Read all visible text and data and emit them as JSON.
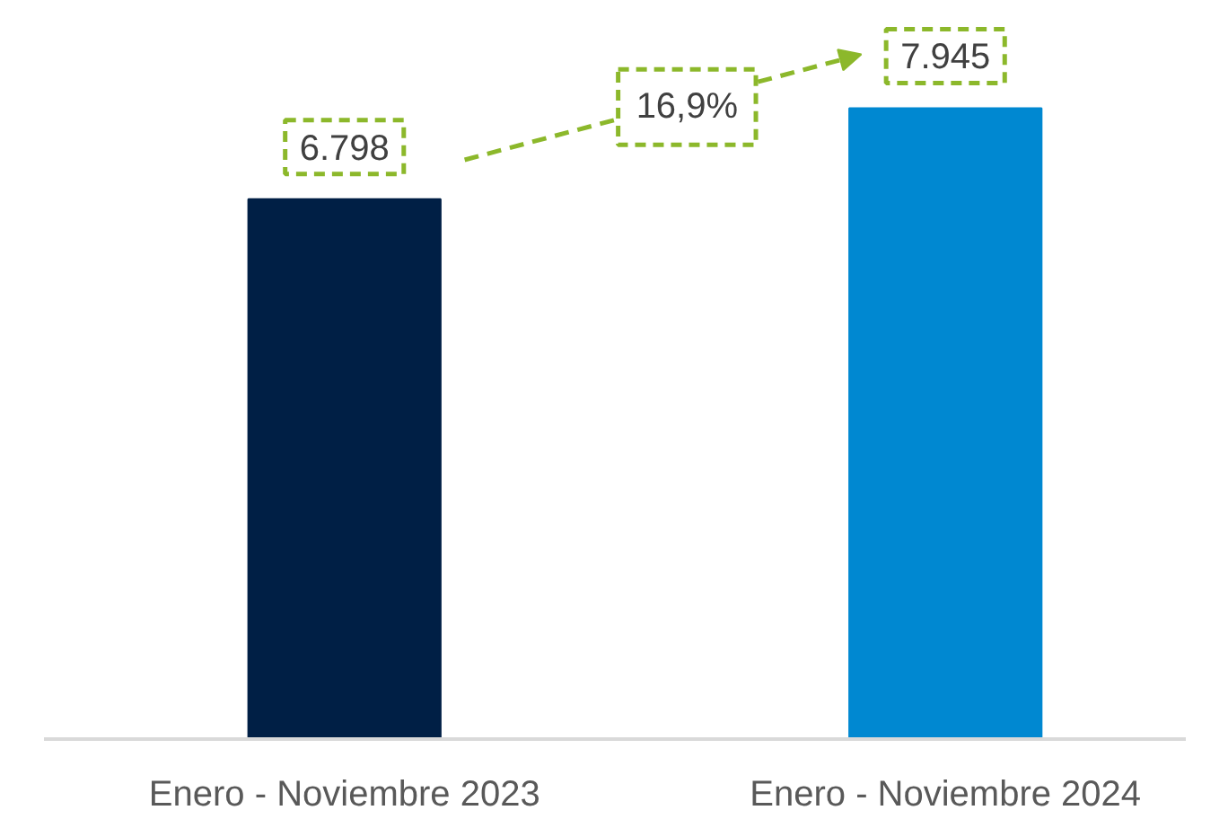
{
  "chart_data": {
    "type": "bar",
    "categories": [
      "Enero - Noviembre 2023",
      "Enero - Noviembre 2024"
    ],
    "values": [
      6798,
      7945
    ],
    "colors": [
      "#001f45",
      "#0088d1"
    ],
    "value_labels": [
      "6.798",
      "7.945"
    ],
    "tick_labels": "x",
    "grid": false,
    "annotations": [
      "16,9%"
    ]
  }
}
